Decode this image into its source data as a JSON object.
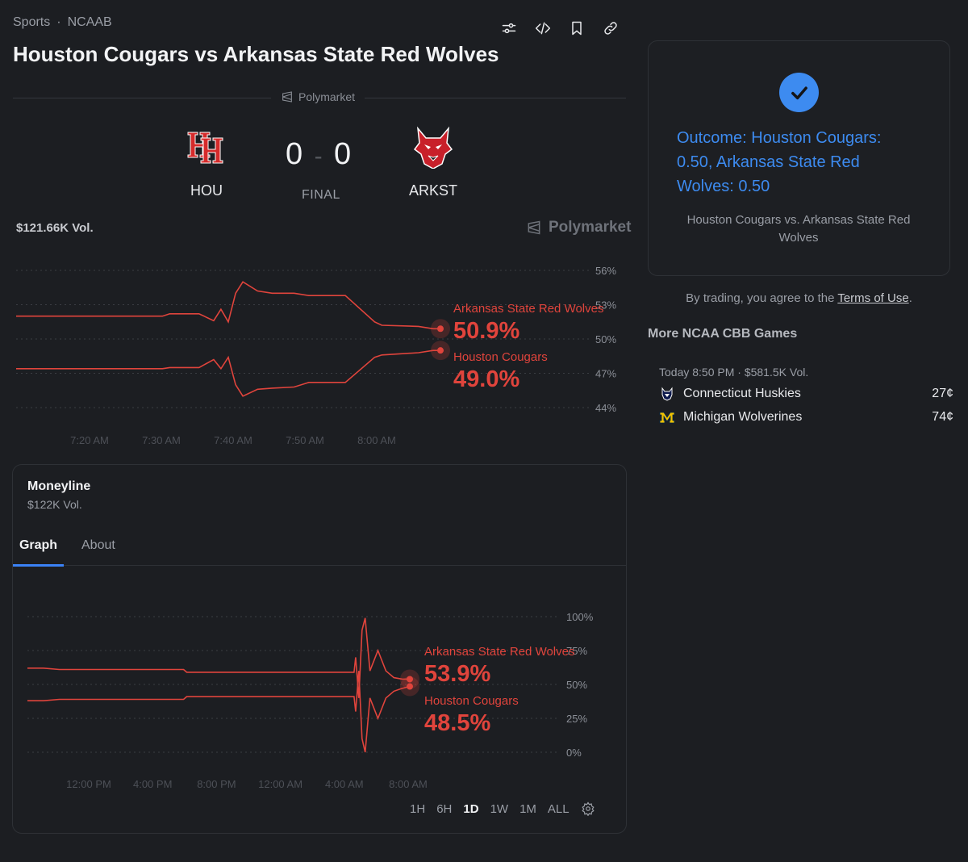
{
  "breadcrumb": {
    "sport": "Sports",
    "separator": "·",
    "league": "NCAAB"
  },
  "title": "Houston Cougars vs Arkansas State Red Wolves",
  "toolbar": {
    "icons": [
      "sliders-icon",
      "code-icon",
      "bookmark-icon",
      "link-icon"
    ]
  },
  "source_label": "Polymarket",
  "scoreboard": {
    "home_abbr": "HOU",
    "away_abbr": "ARKST",
    "home_score": "0",
    "score_separator": "-",
    "away_score": "0",
    "status": "FINAL"
  },
  "volume_label": "$121.66K Vol.",
  "watermark": "Polymarket",
  "colors": {
    "accent_red": "#e0443c",
    "accent_blue": "#3d8bf0",
    "background": "#1c1e22"
  },
  "chart_data": [
    {
      "type": "line",
      "title": "",
      "y_ticks": [
        "56%",
        "53%",
        "50%",
        "47%",
        "44%"
      ],
      "ylim": [
        44,
        56
      ],
      "x_ticks": [
        "7:20 AM",
        "7:30 AM",
        "7:40 AM",
        "7:50 AM",
        "8:00 AM"
      ],
      "x": [
        0,
        5,
        10,
        15,
        20,
        21,
        25,
        27,
        28,
        29,
        30,
        31,
        33,
        35,
        38,
        40,
        45,
        49,
        50,
        55,
        57,
        58
      ],
      "series": [
        {
          "name": "Arkansas State Red Wolves",
          "label_value": "50.9%",
          "values": [
            52.0,
            52.0,
            52.0,
            52.0,
            52.0,
            52.2,
            52.2,
            51.6,
            52.6,
            51.5,
            54.0,
            55.0,
            54.2,
            54.0,
            54.0,
            53.8,
            53.8,
            51.5,
            51.2,
            51.1,
            50.9,
            50.9
          ]
        },
        {
          "name": "Houston Cougars",
          "label_value": "49.0%",
          "values": [
            47.4,
            47.4,
            47.4,
            47.4,
            47.4,
            47.5,
            47.5,
            48.2,
            47.4,
            48.4,
            46.0,
            45.0,
            45.6,
            45.7,
            45.8,
            46.2,
            46.2,
            48.4,
            48.6,
            48.8,
            49.0,
            49.0
          ]
        }
      ]
    },
    {
      "type": "line",
      "title": "",
      "y_ticks": [
        "100%",
        "75%",
        "50%",
        "25%",
        "0%"
      ],
      "ylim": [
        0,
        100
      ],
      "x_ticks": [
        "12:00 PM",
        "4:00 PM",
        "8:00 PM",
        "12:00 AM",
        "4:00 AM",
        "8:00 AM"
      ],
      "x": [
        0,
        1,
        2,
        9.8,
        10,
        20.5,
        20.6,
        20.8,
        21,
        21.2,
        21.5,
        22,
        22.5,
        23,
        23.5,
        24
      ],
      "series": [
        {
          "name": "Arkansas State Red Wolves",
          "label_value": "53.9%",
          "values": [
            62,
            62,
            61,
            61,
            59,
            59,
            70,
            40,
            90,
            99,
            60,
            75,
            60,
            55,
            54,
            53.9
          ]
        },
        {
          "name": "Houston Cougars",
          "label_value": "48.5%",
          "values": [
            38,
            38,
            39,
            39,
            41,
            41,
            30,
            60,
            10,
            0,
            40,
            25,
            40,
            45,
            47,
            48.5
          ]
        }
      ]
    }
  ],
  "moneyline": {
    "title": "Moneyline",
    "volume": "$122K Vol.",
    "tabs": [
      "Graph",
      "About"
    ],
    "ranges": [
      "1H",
      "6H",
      "1D",
      "1W",
      "1M",
      "ALL"
    ],
    "active_range": "1D"
  },
  "outcome_card": {
    "outcome": "Outcome: Houston Cougars: 0.50, Arkansas State Red Wolves: 0.50",
    "subtitle": "Houston Cougars vs. Arkansas State Red Wolves"
  },
  "terms": {
    "prefix": "By trading, you agree to the ",
    "link": "Terms of Use",
    "suffix": "."
  },
  "more_games": {
    "title": "More NCAA CBB Games",
    "games": [
      {
        "meta": "Today 8:50 PM · $581.5K Vol.",
        "teams": [
          {
            "name": "Connecticut Huskies",
            "price": "27¢"
          },
          {
            "name": "Michigan Wolverines",
            "price": "74¢"
          }
        ]
      }
    ]
  }
}
